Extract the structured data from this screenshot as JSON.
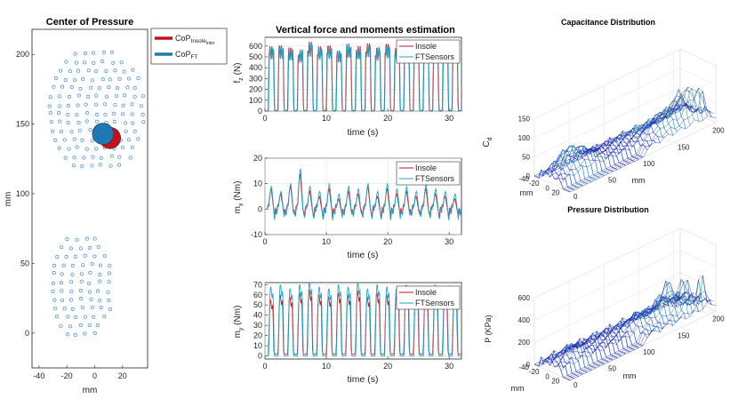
{
  "colors": {
    "insole": "#c1121f",
    "ft": "#1f77b4",
    "insole_line": "#c1121f",
    "ft_line": "#2aa3c0",
    "mesh_low": "#1d1aa8",
    "mesh_mid": "#1e9bbd",
    "mesh_high": "#f1e64a"
  },
  "chart_data": [
    {
      "type": "scatter",
      "title": "Center of Pressure",
      "xlabel": "mm",
      "ylabel": "mm",
      "xlim": [
        -45,
        38
      ],
      "ylim": [
        -25,
        218
      ],
      "xticks": [
        "-40",
        "-20",
        "0",
        "20"
      ],
      "yticks": [
        "0",
        "50",
        "100",
        "150",
        "200"
      ],
      "xtick_values": [
        -40,
        -20,
        0,
        20
      ],
      "ytick_values": [
        0,
        50,
        100,
        150,
        200
      ],
      "legend": [
        {
          "name": "CoP",
          "sub": "Insole",
          "subsub": "inter",
          "color": "#c1121f"
        },
        {
          "name": "CoP",
          "sub": "FT",
          "subsub": "",
          "color": "#1f77b4"
        }
      ],
      "cop_insole": [
        11,
        140
      ],
      "cop_ft": [
        6,
        143
      ],
      "sensor_regions": [
        {
          "name": "toe-forefoot",
          "cx": 2,
          "cy": 160,
          "rx": 34,
          "ry": 46
        },
        {
          "name": "heel",
          "cx": -8,
          "cy": 33,
          "rx": 22,
          "ry": 40
        }
      ]
    },
    {
      "type": "line",
      "panel": "fz",
      "suptitle": "Vertical force and moments estimation",
      "ylabel": "f",
      "ylabel_sub": "z",
      "ylabel_unit": " (N)",
      "xlabel": "time (s)",
      "xlim": [
        0,
        32
      ],
      "ylim": [
        0,
        680
      ],
      "xticks": [
        "0",
        "10",
        "20",
        "30"
      ],
      "yticks": [
        "0",
        "100",
        "200",
        "300",
        "400",
        "500",
        "600"
      ],
      "xtick_values": [
        0,
        10,
        20,
        30
      ],
      "ytick_values": [
        0,
        100,
        200,
        300,
        400,
        500,
        600
      ],
      "legend": [
        "Insole",
        "FTSensors"
      ],
      "series": [
        {
          "name": "Insole",
          "peaks": [
            600,
            610,
            590,
            560,
            640,
            600,
            610,
            560,
            620,
            600,
            630,
            590,
            620,
            580,
            600,
            640,
            610,
            560,
            620,
            600
          ],
          "low": 5
        },
        {
          "name": "FTSensors",
          "peaks": [
            590,
            600,
            580,
            570,
            620,
            590,
            600,
            560,
            610,
            590,
            620,
            580,
            600,
            570,
            590,
            630,
            600,
            560,
            600,
            590
          ],
          "low": 0
        }
      ]
    },
    {
      "type": "line",
      "panel": "mx",
      "ylabel": "m",
      "ylabel_sub": "x",
      "ylabel_unit": " (Nm)",
      "xlabel": "time (s)",
      "xlim": [
        0,
        32
      ],
      "ylim": [
        -10,
        20
      ],
      "xticks": [
        "0",
        "10",
        "20",
        "30"
      ],
      "yticks": [
        "-10",
        "0",
        "10",
        "20"
      ],
      "xtick_values": [
        0,
        10,
        20,
        30
      ],
      "ytick_values": [
        -10,
        0,
        10,
        20
      ],
      "legend": [
        "Insole",
        "FTSensors"
      ],
      "series": [
        {
          "name": "Insole",
          "peaks": [
            8,
            6,
            9,
            14,
            7,
            5,
            8,
            4,
            7,
            6,
            9,
            5,
            8,
            6,
            7,
            5,
            8,
            6,
            5,
            4
          ],
          "low": -2
        },
        {
          "name": "FTSensors",
          "peaks": [
            9,
            7,
            10,
            16,
            9,
            7,
            10,
            6,
            9,
            8,
            10,
            7,
            10,
            8,
            9,
            7,
            10,
            8,
            7,
            6
          ],
          "low": -3
        }
      ]
    },
    {
      "type": "line",
      "panel": "my",
      "ylabel": "m",
      "ylabel_sub": "y",
      "ylabel_unit": " (Nm)",
      "xlabel": "time (s)",
      "xlim": [
        0,
        32
      ],
      "ylim": [
        -3,
        72
      ],
      "xticks": [
        "0",
        "10",
        "20",
        "30"
      ],
      "yticks": [
        "0",
        "10",
        "20",
        "30",
        "40",
        "50",
        "60",
        "70"
      ],
      "xtick_values": [
        0,
        10,
        20,
        30
      ],
      "ytick_values": [
        0,
        10,
        20,
        30,
        40,
        50,
        60,
        70
      ],
      "legend": [
        "Insole",
        "FTSensors"
      ],
      "series": [
        {
          "name": "Insole",
          "peaks": [
            55,
            60,
            58,
            62,
            65,
            60,
            58,
            62,
            60,
            64,
            58,
            62,
            60,
            58,
            62,
            60,
            58,
            62,
            60,
            58
          ],
          "low": 2
        },
        {
          "name": "FTSensors",
          "peaks": [
            68,
            70,
            66,
            70,
            72,
            68,
            66,
            70,
            68,
            72,
            66,
            70,
            68,
            66,
            70,
            68,
            66,
            70,
            68,
            66
          ],
          "low": 0
        }
      ]
    },
    {
      "type": "surface",
      "title": "Capacitance Distribution",
      "zlabel": "C",
      "zlabel_sub": "d",
      "xlabel": "mm",
      "ylabel": "mm",
      "zticks": [
        "0",
        "50",
        "100",
        "150"
      ],
      "xticks": [
        "-40",
        "-20",
        "0",
        "20"
      ],
      "yticks": [
        "0",
        "50",
        "100",
        "150",
        "200"
      ],
      "ztick_values": [
        0,
        50,
        100,
        150
      ],
      "xtick_values": [
        -40,
        -20,
        0,
        20
      ],
      "ytick_values": [
        0,
        50,
        100,
        150,
        200
      ],
      "zlim": [
        0,
        150
      ]
    },
    {
      "type": "surface",
      "title": "Pressure Distribution",
      "zlabel": "P (KPa)",
      "xlabel": "mm",
      "ylabel": "mm",
      "zticks": [
        "0",
        "200",
        "400",
        "600"
      ],
      "xticks": [
        "-40",
        "-20",
        "0",
        "20"
      ],
      "yticks": [
        "0",
        "50",
        "100",
        "150",
        "200"
      ],
      "ztick_values": [
        0,
        200,
        400,
        600
      ],
      "xtick_values": [
        -40,
        -20,
        0,
        20
      ],
      "ytick_values": [
        0,
        50,
        100,
        150,
        200
      ],
      "zlim": [
        0,
        600
      ]
    }
  ]
}
